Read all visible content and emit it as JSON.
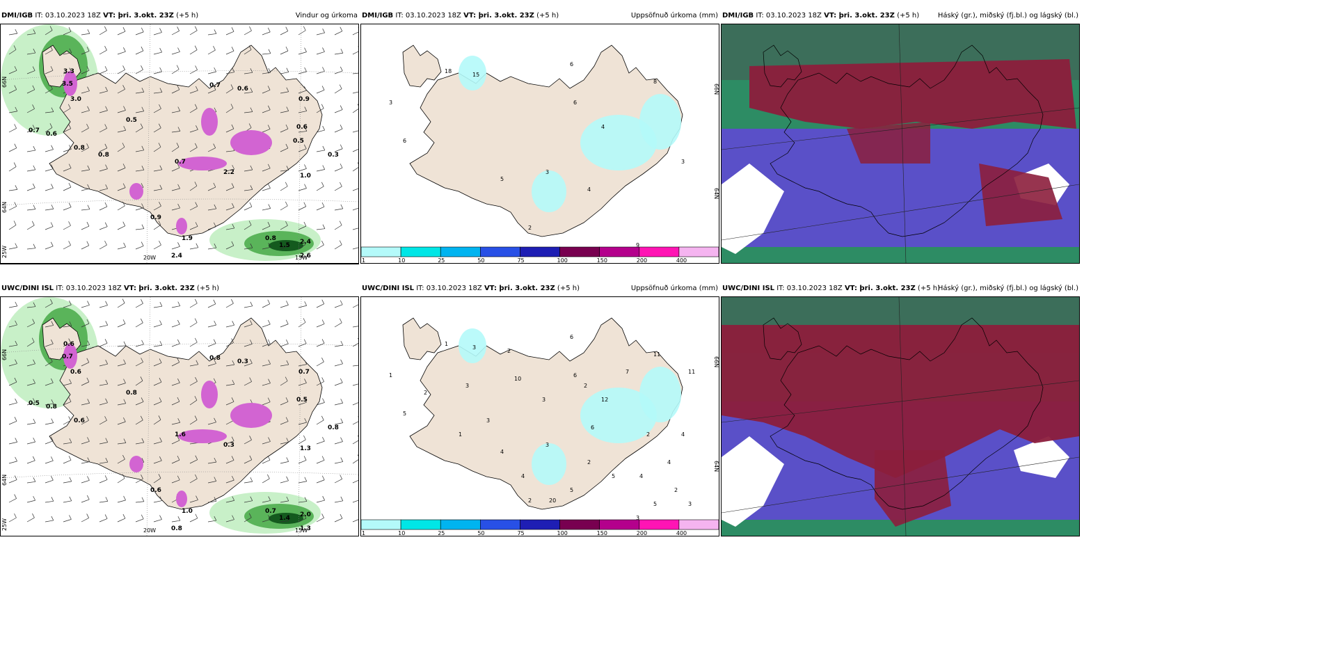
{
  "run_label": "IT: 03.10.2023 18Z",
  "valid_label": "VT: þri. 3.okt. 23Z",
  "lead_label": "(+5 h)",
  "rows": [
    {
      "model": "DMI/IGB"
    },
    {
      "model": "UWC/DINI ISL"
    }
  ],
  "panel_titles": {
    "wind": "Vindur og úrkoma",
    "accum": "Uppsöfnuð úrkoma (mm)",
    "cloud": "Háský (gr.), miðský (fj.bl.) og lágský (bl.)"
  },
  "axes": {
    "lon_20w": "20W",
    "lon_15w": "15W",
    "lon_25w": "25W",
    "lat_66n": "66N",
    "lat_64n": "64N"
  },
  "colorbar": {
    "labels": [
      "1",
      "10",
      "25",
      "50",
      "75",
      "100",
      "150",
      "200",
      "400"
    ],
    "colors": [
      "#b4fafa",
      "#00e6e6",
      "#00b4f0",
      "#2850e6",
      "#1e1eb4",
      "#780050",
      "#b4008c",
      "#ff14b4",
      "#f5b4f0"
    ]
  },
  "colors": {
    "land": "#efe3d6",
    "sea": "#ffffff",
    "precip_light": "#c8f0c8",
    "precip_mid": "#5ab45a",
    "precip_heavy": "#145a1e",
    "snow": "#d264d2",
    "accum_light": "#b4fafa",
    "cloud_high": "#8c1e3c",
    "cloud_mid": "#5a50c8",
    "cloud_low": "#2d8c64"
  },
  "top_wind_values": [
    "3.3",
    "3.5",
    "3.0",
    "0.7",
    "0.6",
    "0.9",
    "0.6",
    "0.5",
    "0.6",
    "0.8",
    "1.0",
    "0.3",
    "0.7",
    "0.9",
    "1.9",
    "0.8",
    "1.5",
    "2.6",
    "2.4",
    "2.4",
    "0.7",
    "2.2",
    "0.5",
    "0.8"
  ],
  "bottom_wind_values": [
    "0.6",
    "0.7",
    "0.6",
    "0.8",
    "0.3",
    "0.7",
    "0.5",
    "0.8",
    "0.8",
    "0.6",
    "1.3",
    "0.8",
    "0.5",
    "0.6",
    "1.0",
    "0.7",
    "1.4",
    "1.3",
    "2.0",
    "0.8",
    "1.6",
    "0.3"
  ],
  "top_accum_values": [
    "3",
    "18",
    "15",
    "6",
    "6",
    "8",
    "4",
    "3",
    "5",
    "2",
    "4",
    "9",
    "6",
    "3"
  ],
  "bottom_accum_values": [
    "1",
    "1",
    "3",
    "6",
    "6",
    "11",
    "12",
    "3",
    "4",
    "2",
    "2",
    "3",
    "5",
    "4",
    "10",
    "7",
    "6",
    "3",
    "3",
    "2",
    "4",
    "5",
    "11",
    "2",
    "3",
    "5",
    "4",
    "1",
    "2",
    "20",
    "5",
    "2",
    "3",
    "4",
    "2"
  ]
}
